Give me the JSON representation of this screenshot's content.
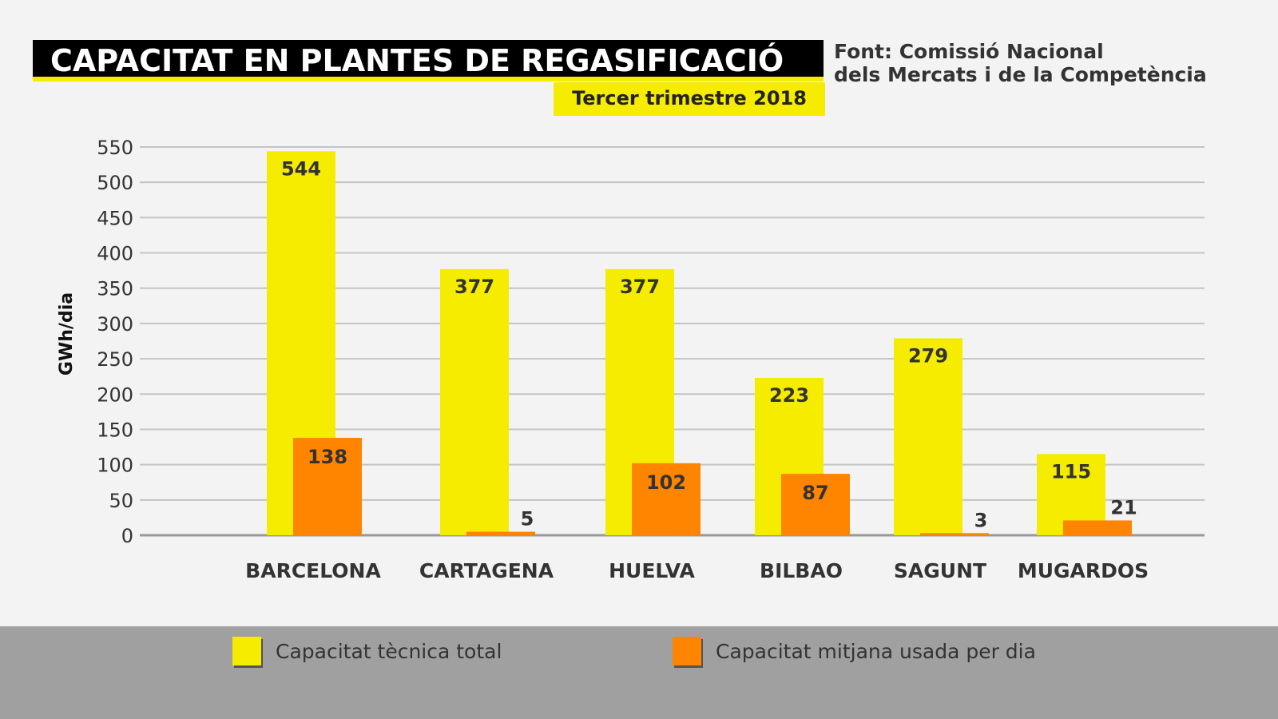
{
  "header": {
    "title": "CAPACITAT EN PLANTES DE REGASIFICACIÓ",
    "subtitle": "Tercer trimestre 2018",
    "source_line1": "Font: Comissió Nacional",
    "source_line2": "dels Mercats i de la Competència"
  },
  "chart_data": {
    "type": "bar",
    "title": "CAPACITAT EN PLANTES DE REGASIFICACIÓ",
    "subtitle": "Tercer trimestre 2018",
    "ylabel": "GWh/dia",
    "xlabel": "",
    "ylim": [
      0,
      550
    ],
    "yticks": [
      0,
      50,
      100,
      150,
      200,
      250,
      300,
      350,
      400,
      450,
      500,
      550
    ],
    "grid": true,
    "legend": "bottom",
    "categories": [
      "BARCELONA",
      "CARTAGENA",
      "HUELVA",
      "BILBAO",
      "SAGUNT",
      "MUGARDOS"
    ],
    "series": [
      {
        "name": "Capacitat tècnica total",
        "color": "#f5ec00",
        "values": [
          544,
          377,
          377,
          223,
          279,
          115
        ]
      },
      {
        "name": "Capacitat mitjana usada per dia",
        "color": "#ff8400",
        "values": [
          138,
          5,
          102,
          87,
          3,
          21
        ]
      }
    ]
  }
}
